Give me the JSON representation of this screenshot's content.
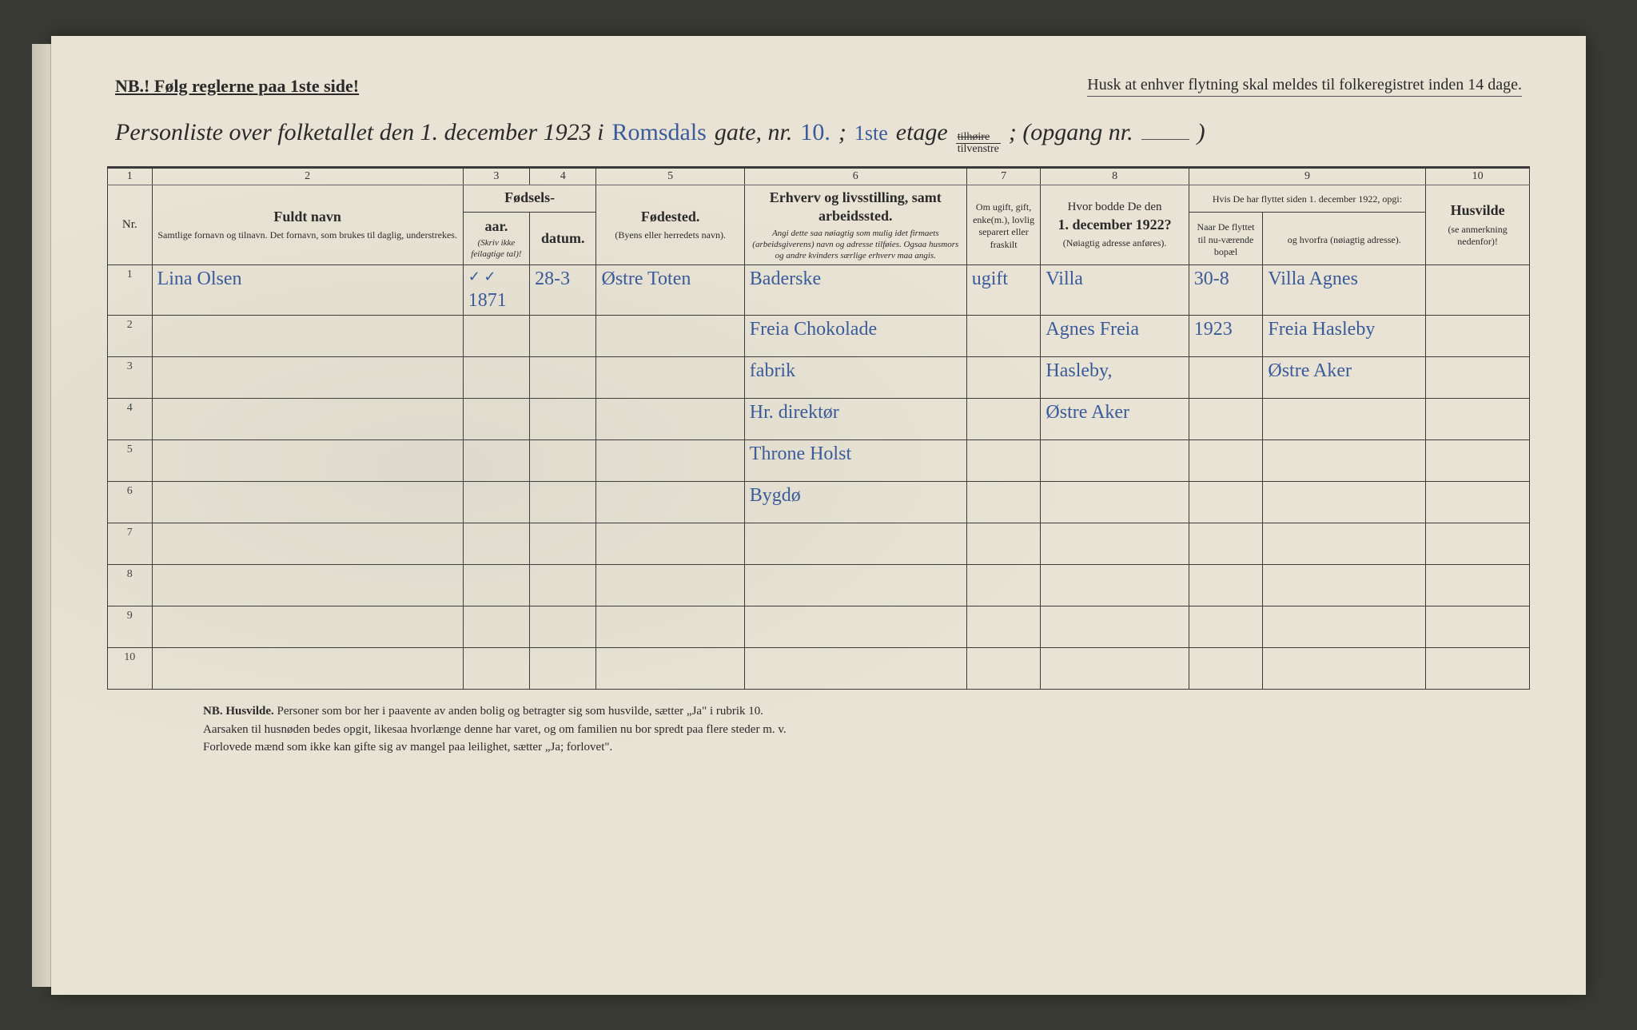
{
  "header": {
    "nb_left": "NB.! Følg reglerne paa 1ste side!",
    "nb_right": "Husk at enhver flytning skal meldes til folkeregistret inden 14 dage.",
    "title_prefix": "Personliste over folketallet den 1. december 1923 i",
    "street_hand": "Romsdals",
    "gate_label": "gate, nr.",
    "gate_nr_hand": "10.",
    "semicolon": " ; ",
    "etage_hand": "1ste",
    "etage_label": "etage",
    "fraction_top": "tilhøire",
    "fraction_bot": "tilvenstre",
    "opgang": "; (opgang nr.",
    "closing": ")"
  },
  "columns": {
    "c1": "1",
    "c2": "2",
    "c3": "3",
    "c4": "4",
    "c5": "5",
    "c6": "6",
    "c7": "7",
    "c8": "8",
    "c9": "9",
    "c10": "10",
    "nr": "Nr.",
    "fuldt_navn": "Fuldt navn",
    "fuldt_navn_sub": "Samtlige fornavn og tilnavn.  Det fornavn, som brukes til daglig, understrekes.",
    "fodsels": "Fødsels-",
    "aar": "aar.",
    "datum": "datum.",
    "fodsels_note": "(Skriv ikke feilagtige tal)!",
    "fodested": "Fødested.",
    "fodested_sub": "(Byens eller herredets navn).",
    "erhverv": "Erhverv og livsstilling, samt arbeidssted.",
    "erhverv_sub": "Angi dette saa nøiagtig som mulig idet firmaets (arbeidsgiverens) navn og adresse tilføies. Ogsaa husmors og andre kvinders særlige erhverv maa angis.",
    "ugift": "Om ugift, gift, enke(m.), lovlig separert eller fraskilt",
    "bodde": "Hvor bodde De den",
    "bodde_date": "1. december 1922?",
    "bodde_sub": "(Nøiagtig adresse anføres).",
    "flyttet_head": "Hvis De har flyttet siden 1. december 1922, opgi:",
    "naar": "Naar De flyttet til nu-værende bopæl",
    "hvorfra": "og hvorfra (nøiagtig adresse).",
    "husvilde": "Husvilde",
    "husvilde_sub": "(se anmerkning nedenfor)!"
  },
  "rows": [
    {
      "nr": "1",
      "name": "Lina Olsen",
      "year": "1871",
      "year_check": "✓ ✓",
      "date": "28-3",
      "birthplace": "Østre Toten",
      "occupation": "Baderske",
      "marital": "ugift",
      "addr1922": "Villa",
      "moved_when": "30-8",
      "moved_from": "Villa Agnes"
    },
    {
      "nr": "2",
      "occupation": "Freia Chokolade",
      "addr1922": "Agnes Freia",
      "moved_when": "1923",
      "moved_from": "Freia Hasleby"
    },
    {
      "nr": "3",
      "occupation": "fabrik",
      "addr1922": "Hasleby,",
      "moved_from": "Østre Aker"
    },
    {
      "nr": "4",
      "occupation": "Hr. direktør",
      "addr1922": "Østre Aker"
    },
    {
      "nr": "5",
      "occupation": "Throne Holst"
    },
    {
      "nr": "6",
      "occupation": "Bygdø"
    },
    {
      "nr": "7"
    },
    {
      "nr": "8"
    },
    {
      "nr": "9"
    },
    {
      "nr": "10"
    }
  ],
  "footnote": {
    "lead": "NB.  Husvilde.",
    "line1": "Personer som bor her i paavente av anden bolig og betragter sig som husvilde, sætter „Ja\" i rubrik 10.",
    "line2": "Aarsaken til husnøden bedes opgit, likesaa hvorlænge denne har varet, og om familien nu bor spredt paa flere steder m. v.",
    "line3": "Forlovede mænd som ikke kan gifte sig av mangel paa leilighet, sætter „Ja; forlovet\"."
  },
  "colors": {
    "paper": "#e8e3d4",
    "ink": "#2a2a2a",
    "hand": "#3a5a9a",
    "border": "#3a3a3a"
  }
}
